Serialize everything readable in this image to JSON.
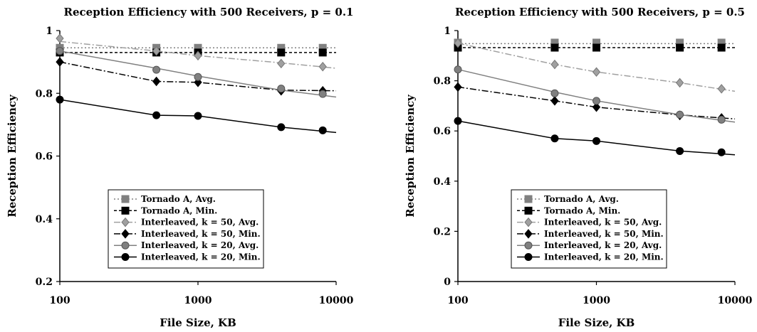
{
  "chart_data": [
    {
      "type": "line",
      "title": "Reception Efficiency with 500 Receivers, p = 0.1",
      "xlabel": "File Size, KB",
      "ylabel": "Reception Efficiency",
      "x_scale": "log",
      "xlim": [
        100,
        10000
      ],
      "ylim": [
        0.2,
        1
      ],
      "x_ticks": [
        100,
        1000,
        10000
      ],
      "x_tick_labels": [
        "100",
        "1000",
        "10000"
      ],
      "y_ticks": [
        0.2,
        0.4,
        0.6,
        0.8,
        1
      ],
      "y_tick_labels": [
        "0.2",
        "0.4",
        "0.6",
        "0.8",
        "1"
      ],
      "grid": false,
      "legend_position": "bottom-center",
      "series": [
        {
          "name": "Tornado A, Avg.",
          "color": "#808080",
          "marker": "square",
          "line": "dotted",
          "x": [
            100,
            500,
            1000,
            4000,
            8000
          ],
          "values": [
            0.945,
            0.945,
            0.945,
            0.945,
            0.945
          ],
          "trend": [
            [
              100,
              0.945
            ],
            [
              10000,
              0.945
            ]
          ]
        },
        {
          "name": "Tornado A, Min.",
          "color": "#000000",
          "marker": "square",
          "line": "dashed",
          "x": [
            100,
            500,
            1000,
            4000,
            8000
          ],
          "values": [
            0.93,
            0.93,
            0.93,
            0.93,
            0.93
          ],
          "trend": [
            [
              100,
              0.93
            ],
            [
              10000,
              0.93
            ]
          ]
        },
        {
          "name": "Interleaved, k = 50, Avg.",
          "color": "#a0a0a0",
          "marker": "diamond",
          "line": "dashdot",
          "x": [
            100,
            500,
            1000,
            4000,
            8000
          ],
          "values": [
            0.975,
            0.935,
            0.92,
            0.895,
            0.885
          ],
          "trend": [
            [
              100,
              0.965
            ],
            [
              500,
              0.935
            ],
            [
              1000,
              0.92
            ],
            [
              4000,
              0.897
            ],
            [
              10000,
              0.88
            ]
          ]
        },
        {
          "name": "Interleaved, k = 50, Min.",
          "color": "#000000",
          "marker": "diamond",
          "line": "dashdot",
          "x": [
            100,
            500,
            1000,
            4000,
            8000
          ],
          "values": [
            0.9,
            0.838,
            0.835,
            0.808,
            0.808
          ],
          "trend": [
            [
              100,
              0.9
            ],
            [
              500,
              0.838
            ],
            [
              1000,
              0.835
            ],
            [
              4000,
              0.81
            ],
            [
              10000,
              0.808
            ]
          ]
        },
        {
          "name": "Interleaved, k = 20, Avg.",
          "color": "#808080",
          "marker": "circle",
          "line": "solid",
          "x": [
            100,
            500,
            1000,
            4000,
            8000
          ],
          "values": [
            0.935,
            0.875,
            0.852,
            0.815,
            0.798
          ],
          "trend": [
            [
              100,
              0.935
            ],
            [
              500,
              0.88
            ],
            [
              1000,
              0.855
            ],
            [
              4000,
              0.81
            ],
            [
              10000,
              0.788
            ]
          ]
        },
        {
          "name": "Interleaved, k = 20, Min.",
          "color": "#000000",
          "marker": "circle",
          "line": "solid",
          "x": [
            100,
            500,
            1000,
            4000,
            8000
          ],
          "values": [
            0.78,
            0.73,
            0.728,
            0.692,
            0.682
          ],
          "trend": [
            [
              100,
              0.78
            ],
            [
              500,
              0.73
            ],
            [
              1000,
              0.728
            ],
            [
              4000,
              0.692
            ],
            [
              10000,
              0.675
            ]
          ]
        }
      ]
    },
    {
      "type": "line",
      "title": "Reception Efficiency with 500 Receivers, p = 0.5",
      "xlabel": "File Size, KB",
      "ylabel": "Reception Efficiency",
      "x_scale": "log",
      "xlim": [
        100,
        10000
      ],
      "ylim": [
        0,
        1
      ],
      "x_ticks": [
        100,
        1000,
        10000
      ],
      "x_tick_labels": [
        "100",
        "1000",
        "10000"
      ],
      "y_ticks": [
        0,
        0.2,
        0.4,
        0.6,
        0.8,
        1
      ],
      "y_tick_labels": [
        "0",
        "0.2",
        "0.4",
        "0.6",
        "0.8",
        "1"
      ],
      "grid": false,
      "legend_position": "bottom-center",
      "series": [
        {
          "name": "Tornado A, Avg.",
          "color": "#808080",
          "marker": "square",
          "line": "dotted",
          "x": [
            100,
            500,
            1000,
            4000,
            8000
          ],
          "values": [
            0.952,
            0.952,
            0.952,
            0.952,
            0.952
          ],
          "trend": [
            [
              100,
              0.948
            ],
            [
              10000,
              0.948
            ]
          ]
        },
        {
          "name": "Tornado A, Min.",
          "color": "#000000",
          "marker": "square",
          "line": "dashed",
          "x": [
            100,
            500,
            1000,
            4000,
            8000
          ],
          "values": [
            0.932,
            0.932,
            0.932,
            0.932,
            0.932
          ],
          "trend": [
            [
              100,
              0.932
            ],
            [
              10000,
              0.932
            ]
          ]
        },
        {
          "name": "Interleaved, k = 50, Avg.",
          "color": "#a0a0a0",
          "marker": "diamond",
          "line": "dashdot",
          "x": [
            100,
            500,
            1000,
            4000,
            8000
          ],
          "values": [
            0.95,
            0.865,
            0.835,
            0.792,
            0.768
          ],
          "trend": [
            [
              100,
              0.95
            ],
            [
              500,
              0.865
            ],
            [
              1000,
              0.835
            ],
            [
              4000,
              0.792
            ],
            [
              10000,
              0.758
            ]
          ]
        },
        {
          "name": "Interleaved, k = 50, Min.",
          "color": "#000000",
          "marker": "diamond",
          "line": "dashdot",
          "x": [
            100,
            500,
            1000,
            4000,
            8000
          ],
          "values": [
            0.775,
            0.72,
            0.695,
            0.662,
            0.652
          ],
          "trend": [
            [
              100,
              0.775
            ],
            [
              500,
              0.72
            ],
            [
              1000,
              0.695
            ],
            [
              4000,
              0.664
            ],
            [
              10000,
              0.648
            ]
          ]
        },
        {
          "name": "Interleaved, k = 20, Avg.",
          "color": "#808080",
          "marker": "circle",
          "line": "solid",
          "x": [
            100,
            500,
            1000,
            4000,
            8000
          ],
          "values": [
            0.845,
            0.75,
            0.72,
            0.665,
            0.645
          ],
          "trend": [
            [
              100,
              0.845
            ],
            [
              500,
              0.755
            ],
            [
              1000,
              0.72
            ],
            [
              4000,
              0.665
            ],
            [
              10000,
              0.635
            ]
          ]
        },
        {
          "name": "Interleaved, k = 20, Min.",
          "color": "#000000",
          "marker": "circle",
          "line": "solid",
          "x": [
            100,
            500,
            1000,
            4000,
            8000
          ],
          "values": [
            0.64,
            0.57,
            0.56,
            0.52,
            0.515
          ],
          "trend": [
            [
              100,
              0.64
            ],
            [
              500,
              0.57
            ],
            [
              1000,
              0.56
            ],
            [
              4000,
              0.52
            ],
            [
              10000,
              0.505
            ]
          ]
        }
      ]
    }
  ]
}
